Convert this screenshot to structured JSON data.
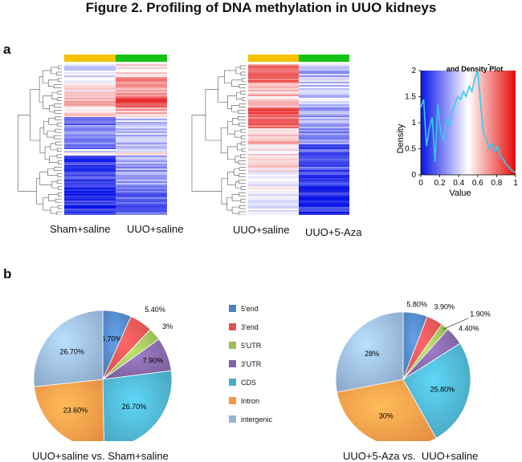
{
  "figure": {
    "title": "Figure 2. Profiling of DNA methylation in UUO kidneys"
  },
  "panels": {
    "a": "a",
    "b": "b"
  },
  "chart_data": [
    {
      "type": "heatmap",
      "groups": [
        {
          "name": "Sham+saline",
          "color": "#f5c200"
        },
        {
          "name": "UUO+saline",
          "color": "#16c216"
        }
      ],
      "clustered": true,
      "colors": {
        "low": "#0a14e6",
        "mid": "#ffffff",
        "high": "#e60a0a"
      }
    },
    {
      "type": "heatmap",
      "groups": [
        {
          "name": "UUO+saline",
          "color": "#f5c200"
        },
        {
          "name": "UUO+5-Aza",
          "color": "#16c216"
        }
      ],
      "clustered": true,
      "colors": {
        "low": "#0a14e6",
        "mid": "#ffffff",
        "high": "#e60a0a"
      }
    },
    {
      "type": "line",
      "title": "Color Key\nand Density Plot",
      "xlabel": "Value",
      "ylabel": "Density",
      "xlim": [
        0,
        1
      ],
      "ylim": [
        0,
        2
      ],
      "xticks": [
        "0",
        "0.2",
        "0.4",
        "0.6",
        "0.8",
        "1"
      ],
      "yticks": [
        "0",
        "0.5",
        "1",
        "1.5",
        "2"
      ],
      "x": [
        0.0,
        0.03,
        0.06,
        0.09,
        0.12,
        0.15,
        0.18,
        0.21,
        0.24,
        0.27,
        0.3,
        0.33,
        0.36,
        0.39,
        0.42,
        0.45,
        0.48,
        0.51,
        0.54,
        0.57,
        0.6,
        0.63,
        0.66,
        0.69,
        0.72,
        0.75,
        0.78,
        0.81,
        0.84,
        0.87,
        0.9,
        0.93,
        0.96,
        1.0
      ],
      "y": [
        1.3,
        1.45,
        0.55,
        0.9,
        1.1,
        0.25,
        1.35,
        0.8,
        0.65,
        1.05,
        0.95,
        1.2,
        1.35,
        1.5,
        1.45,
        1.6,
        1.5,
        1.7,
        1.6,
        1.85,
        2.0,
        1.4,
        0.8,
        0.7,
        0.5,
        0.6,
        0.45,
        0.55,
        0.35,
        0.3,
        0.2,
        0.15,
        0.08,
        0.05
      ],
      "series_color": "#33ccee"
    },
    {
      "type": "pie",
      "caption": "UUO+saline vs. Sham+saline",
      "categories": [
        "5'end",
        "3'end",
        "5'UTR",
        "3'UTR",
        "CDS",
        "Intron",
        "intergenic"
      ],
      "values": [
        6.7,
        5.4,
        3,
        7.9,
        26.7,
        23.6,
        26.7
      ],
      "labels": [
        "6.70%",
        "5.40%",
        "3%",
        "7.90%",
        "26.70%",
        "23.60%",
        "26.70%"
      ]
    },
    {
      "type": "pie",
      "caption": "UUO+5-Aza vs.  UUO+saline",
      "categories": [
        "5'end",
        "3'end",
        "5'UTR",
        "3'UTR",
        "CDS",
        "Intron",
        "intergenic"
      ],
      "values": [
        5.8,
        3.9,
        1.9,
        4.4,
        25.8,
        30,
        28
      ],
      "labels": [
        "5.80%",
        "3.90%",
        "1.90%",
        "4.40%",
        "25.80%",
        "30%",
        "28%"
      ]
    }
  ],
  "legend": [
    {
      "label": "5'end",
      "color": "#4f81bd"
    },
    {
      "label": "3'end",
      "color": "#e05353"
    },
    {
      "label": "5'UTR",
      "color": "#9bbb59"
    },
    {
      "label": "3'UTR",
      "color": "#8064a2"
    },
    {
      "label": "CDS",
      "color": "#4bacc6"
    },
    {
      "label": "Intron",
      "color": "#f79646"
    },
    {
      "label": "intergenic",
      "color": "#95b3d7"
    }
  ]
}
